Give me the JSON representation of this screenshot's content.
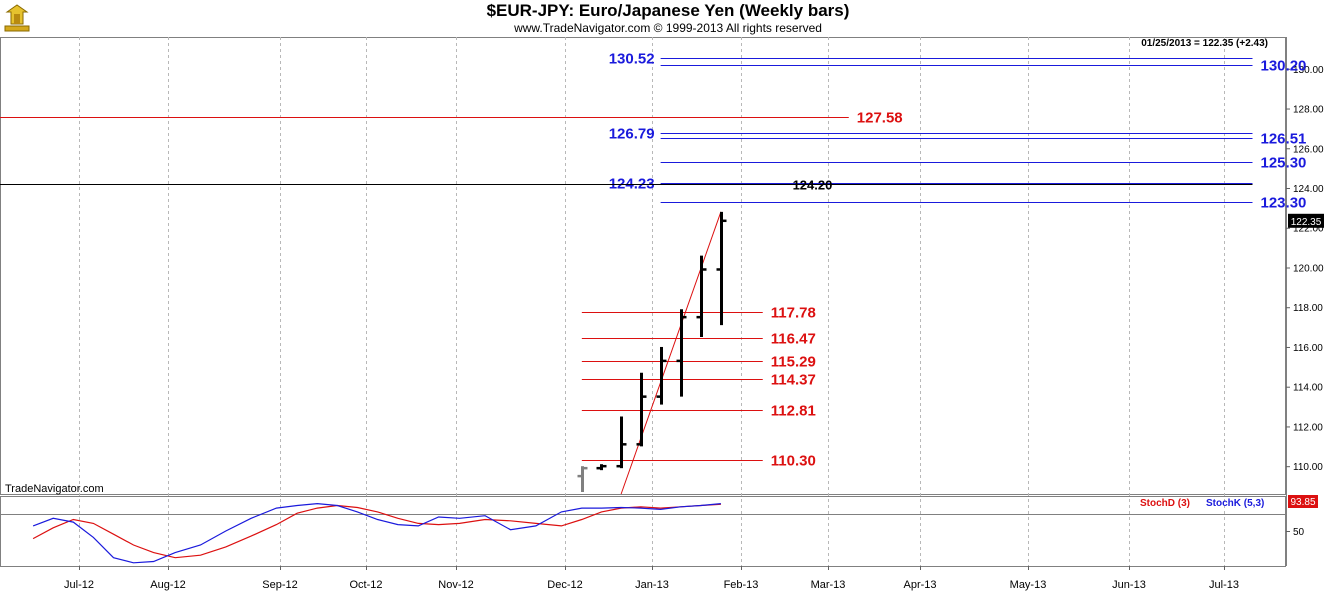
{
  "header": {
    "title": "$EUR-JPY:  Euro/Japanese Yen  (Weekly bars)",
    "copyright": "www.TradeNavigator.com © 1999-2013 All rights reserved"
  },
  "colors": {
    "blue_levels": "#1a1adc",
    "red_levels": "#dc1010",
    "black_level": "#000000",
    "trendline": "#dc1010",
    "stoch_d": "#dc1010",
    "stoch_k": "#1a1adc",
    "price_bars": "#000000",
    "grid": "#b8b8b8"
  },
  "chart_data": [
    {
      "type": "bar",
      "subtype": "ohlc",
      "title": "$EUR-JPY:  Euro/Japanese Yen  (Weekly bars)",
      "last_info": "01/25/2013 = 122.35 (+2.43)",
      "last_price_label": "122.35",
      "watermark": "TradeNavigator.com",
      "x_labels": [
        "Jul-12",
        "Aug-12",
        "Sep-12",
        "Oct-12",
        "Nov-12",
        "Dec-12",
        "Jan-13",
        "Feb-13",
        "Mar-13",
        "Apr-13",
        "May-13",
        "Jun-13",
        "Jul-13"
      ],
      "y_ticks": [
        "110.00",
        "112.00",
        "114.00",
        "116.00",
        "118.00",
        "120.00",
        "122.00",
        "124.00",
        "126.00",
        "128.00",
        "130.00"
      ],
      "ylim": [
        108.6,
        131.6
      ],
      "bars": [
        {
          "date": "2012-12-07",
          "open": 109.5,
          "high": 110.0,
          "low": 108.7,
          "close": 109.9,
          "color": "#808080"
        },
        {
          "date": "2012-12-14",
          "open": 109.9,
          "high": 110.1,
          "low": 109.8,
          "close": 110.0
        },
        {
          "date": "2012-12-21",
          "open": 110.0,
          "high": 112.5,
          "low": 109.9,
          "close": 111.1
        },
        {
          "date": "2012-12-28",
          "open": 111.1,
          "high": 114.7,
          "low": 111.0,
          "close": 113.5
        },
        {
          "date": "2013-01-04",
          "open": 113.5,
          "high": 116.0,
          "low": 113.1,
          "close": 115.3
        },
        {
          "date": "2013-01-11",
          "open": 115.3,
          "high": 117.9,
          "low": 113.5,
          "close": 117.5
        },
        {
          "date": "2013-01-18",
          "open": 117.5,
          "high": 120.6,
          "low": 116.5,
          "close": 119.9
        },
        {
          "date": "2013-01-25",
          "open": 119.9,
          "high": 122.8,
          "low": 117.1,
          "close": 122.35
        }
      ],
      "trendline": {
        "from": {
          "date": "2012-12-21",
          "price": 108.6
        },
        "to": {
          "date": "2013-01-25",
          "price": 122.8
        }
      },
      "levels": [
        {
          "value": 130.52,
          "label": "130.52",
          "color": "blue",
          "from": "2013-01-04",
          "to": "2013-07-10",
          "label_side": "left"
        },
        {
          "value": 130.2,
          "label": "130.20",
          "color": "blue",
          "from": "2013-01-04",
          "to": "2013-07-10",
          "label_side": "right"
        },
        {
          "value": 127.58,
          "label": "127.58",
          "color": "red",
          "from": "2012-06-01",
          "to": "2013-03-08",
          "label_side": "right"
        },
        {
          "value": 126.79,
          "label": "126.79",
          "color": "blue",
          "from": "2013-01-04",
          "to": "2013-07-10",
          "label_side": "left"
        },
        {
          "value": 126.51,
          "label": "126.51",
          "color": "blue",
          "from": "2013-01-04",
          "to": "2013-07-10",
          "label_side": "right"
        },
        {
          "value": 125.3,
          "label": "125.30",
          "color": "blue",
          "from": "2013-01-04",
          "to": "2013-07-10",
          "label_side": "right"
        },
        {
          "value": 124.23,
          "label": "124.23",
          "color": "blue",
          "from": "2013-01-04",
          "to": "2013-07-10",
          "label_side": "left"
        },
        {
          "value": 124.2,
          "label": "124.20",
          "color": "black",
          "from": "2012-06-01",
          "to": "2013-07-10",
          "label_side": "mid"
        },
        {
          "value": 123.3,
          "label": "123.30",
          "color": "blue",
          "from": "2013-01-04",
          "to": "2013-07-10",
          "label_side": "right"
        },
        {
          "value": 117.78,
          "label": "117.78",
          "color": "red",
          "from": "2012-12-07",
          "to": "2013-02-08",
          "label_side": "right"
        },
        {
          "value": 116.47,
          "label": "116.47",
          "color": "red",
          "from": "2012-12-07",
          "to": "2013-02-08",
          "label_side": "right"
        },
        {
          "value": 115.29,
          "label": "115.29",
          "color": "red",
          "from": "2012-12-07",
          "to": "2013-02-08",
          "label_side": "right"
        },
        {
          "value": 114.37,
          "label": "114.37",
          "color": "red",
          "from": "2012-12-07",
          "to": "2013-02-08",
          "label_side": "right"
        },
        {
          "value": 112.81,
          "label": "112.81",
          "color": "red",
          "from": "2012-12-07",
          "to": "2013-02-08",
          "label_side": "right"
        },
        {
          "value": 110.3,
          "label": "110.30",
          "color": "red",
          "from": "2012-12-07",
          "to": "2013-02-08",
          "label_side": "right"
        }
      ]
    },
    {
      "type": "line",
      "title": "",
      "last_value_label": "93.85",
      "y_ticks": [
        "50"
      ],
      "ylim": [
        -5,
        105
      ],
      "series": [
        {
          "name": "StochD (3)",
          "color": "red",
          "x": [
            "2012-06-15",
            "2012-06-22",
            "2012-06-29",
            "2012-07-06",
            "2012-07-13",
            "2012-07-20",
            "2012-07-27",
            "2012-08-03",
            "2012-08-10",
            "2012-08-17",
            "2012-08-24",
            "2012-08-31",
            "2012-09-07",
            "2012-09-14",
            "2012-09-21",
            "2012-09-28",
            "2012-10-05",
            "2012-10-12",
            "2012-10-19",
            "2012-10-26",
            "2012-11-02",
            "2012-11-09",
            "2012-11-16",
            "2012-11-23",
            "2012-11-30",
            "2012-12-07",
            "2012-12-14",
            "2012-12-21",
            "2012-12-28",
            "2013-01-04",
            "2013-01-11",
            "2013-01-18",
            "2013-01-25"
          ],
          "values": [
            38,
            55,
            68,
            62,
            45,
            28,
            16,
            8,
            12,
            25,
            42,
            60,
            78,
            86,
            90,
            87,
            80,
            70,
            62,
            60,
            62,
            68,
            66,
            62,
            58,
            68,
            80,
            86,
            88,
            86,
            88,
            90,
            92
          ]
        },
        {
          "name": "StochK (5,3)",
          "color": "blue",
          "x": [
            "2012-06-15",
            "2012-06-22",
            "2012-06-29",
            "2012-07-06",
            "2012-07-13",
            "2012-07-20",
            "2012-07-27",
            "2012-08-03",
            "2012-08-10",
            "2012-08-17",
            "2012-08-24",
            "2012-08-31",
            "2012-09-07",
            "2012-09-14",
            "2012-09-21",
            "2012-09-28",
            "2012-10-05",
            "2012-10-12",
            "2012-10-19",
            "2012-10-26",
            "2012-11-02",
            "2012-11-09",
            "2012-11-16",
            "2012-11-23",
            "2012-11-30",
            "2012-12-07",
            "2012-12-14",
            "2012-12-21",
            "2012-12-28",
            "2013-01-04",
            "2013-01-11",
            "2013-01-18",
            "2013-01-25"
          ],
          "values": [
            58,
            70,
            64,
            40,
            8,
            0,
            2,
            16,
            28,
            50,
            70,
            86,
            90,
            93,
            90,
            80,
            68,
            60,
            58,
            72,
            70,
            74,
            52,
            58,
            80,
            86,
            86,
            87,
            86,
            84,
            88,
            90,
            93
          ]
        }
      ]
    }
  ]
}
